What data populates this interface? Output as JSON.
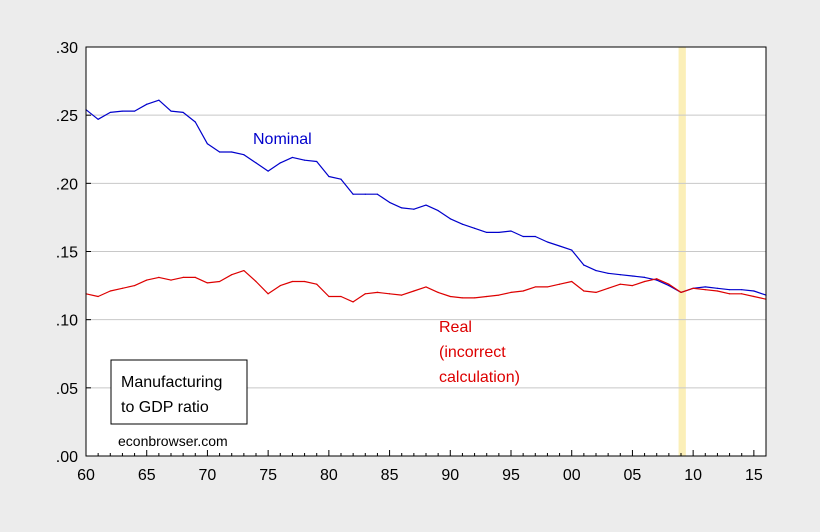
{
  "chart_data": {
    "type": "line",
    "title": "Manufacturing to GDP ratio",
    "title_lines": [
      "Manufacturing",
      "to GDP ratio"
    ],
    "credit": "econbrowser.com",
    "xlabel": "",
    "ylabel": "",
    "xlim": [
      1960,
      2016
    ],
    "ylim": [
      0.0,
      0.3
    ],
    "grid": true,
    "yticks": [
      {
        "value": 0.0,
        "label": ".00"
      },
      {
        "value": 0.05,
        "label": ".05"
      },
      {
        "value": 0.1,
        "label": ".10"
      },
      {
        "value": 0.15,
        "label": ".15"
      },
      {
        "value": 0.2,
        "label": ".20"
      },
      {
        "value": 0.25,
        "label": ".25"
      },
      {
        "value": 0.3,
        "label": ".30"
      }
    ],
    "xticks": [
      {
        "value": 1960,
        "label": "60"
      },
      {
        "value": 1965,
        "label": "65"
      },
      {
        "value": 1970,
        "label": "70"
      },
      {
        "value": 1975,
        "label": "75"
      },
      {
        "value": 1980,
        "label": "80"
      },
      {
        "value": 1985,
        "label": "85"
      },
      {
        "value": 1990,
        "label": "90"
      },
      {
        "value": 1995,
        "label": "95"
      },
      {
        "value": 2000,
        "label": "00"
      },
      {
        "value": 2005,
        "label": "05"
      },
      {
        "value": 2010,
        "label": "10"
      },
      {
        "value": 2015,
        "label": "15"
      }
    ],
    "recession_band": {
      "start": 2008.8,
      "end": 2009.4,
      "color": "#fbefb8"
    },
    "series": [
      {
        "name": "Nominal",
        "label_lines": [
          "Nominal"
        ],
        "color": "#0000cc",
        "x": [
          1960,
          1961,
          1962,
          1963,
          1964,
          1965,
          1966,
          1967,
          1968,
          1969,
          1970,
          1971,
          1972,
          1973,
          1974,
          1975,
          1976,
          1977,
          1978,
          1979,
          1980,
          1981,
          1982,
          1983,
          1984,
          1985,
          1986,
          1987,
          1988,
          1989,
          1990,
          1991,
          1992,
          1993,
          1994,
          1995,
          1996,
          1997,
          1998,
          1999,
          2000,
          2001,
          2002,
          2003,
          2004,
          2005,
          2006,
          2007,
          2008,
          2009,
          2010,
          2011,
          2012,
          2013,
          2014,
          2015,
          2016
        ],
        "values": [
          0.254,
          0.247,
          0.252,
          0.253,
          0.253,
          0.258,
          0.261,
          0.253,
          0.252,
          0.245,
          0.229,
          0.223,
          0.223,
          0.221,
          0.215,
          0.209,
          0.215,
          0.219,
          0.217,
          0.216,
          0.205,
          0.203,
          0.192,
          0.192,
          0.192,
          0.186,
          0.182,
          0.181,
          0.184,
          0.18,
          0.174,
          0.17,
          0.167,
          0.164,
          0.164,
          0.165,
          0.161,
          0.161,
          0.157,
          0.154,
          0.151,
          0.14,
          0.136,
          0.134,
          0.133,
          0.132,
          0.131,
          0.129,
          0.125,
          0.12,
          0.123,
          0.124,
          0.123,
          0.122,
          0.122,
          0.121,
          0.118
        ]
      },
      {
        "name": "Real (incorrect calculation)",
        "label_lines": [
          "Real",
          "(incorrect",
          "calculation)"
        ],
        "color": "#dd0000",
        "x": [
          1960,
          1961,
          1962,
          1963,
          1964,
          1965,
          1966,
          1967,
          1968,
          1969,
          1970,
          1971,
          1972,
          1973,
          1974,
          1975,
          1976,
          1977,
          1978,
          1979,
          1980,
          1981,
          1982,
          1983,
          1984,
          1985,
          1986,
          1987,
          1988,
          1989,
          1990,
          1991,
          1992,
          1993,
          1994,
          1995,
          1996,
          1997,
          1998,
          1999,
          2000,
          2001,
          2002,
          2003,
          2004,
          2005,
          2006,
          2007,
          2008,
          2009,
          2010,
          2011,
          2012,
          2013,
          2014,
          2015,
          2016
        ],
        "values": [
          0.119,
          0.117,
          0.121,
          0.123,
          0.125,
          0.129,
          0.131,
          0.129,
          0.131,
          0.131,
          0.127,
          0.128,
          0.133,
          0.136,
          0.128,
          0.119,
          0.125,
          0.128,
          0.128,
          0.126,
          0.117,
          0.117,
          0.113,
          0.119,
          0.12,
          0.119,
          0.118,
          0.121,
          0.124,
          0.12,
          0.117,
          0.116,
          0.116,
          0.117,
          0.118,
          0.12,
          0.121,
          0.124,
          0.124,
          0.126,
          0.128,
          0.121,
          0.12,
          0.123,
          0.126,
          0.125,
          0.128,
          0.13,
          0.126,
          0.12,
          0.123,
          0.122,
          0.121,
          0.119,
          0.119,
          0.117,
          0.115
        ]
      }
    ]
  }
}
